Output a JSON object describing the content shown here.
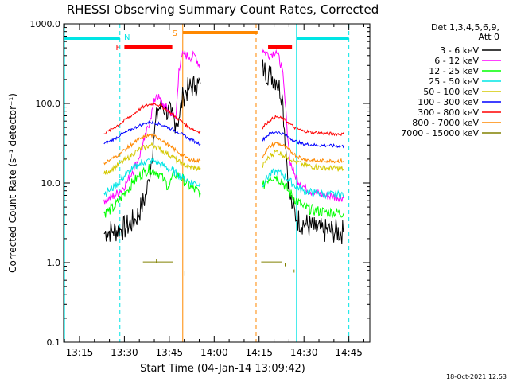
{
  "chart_data": {
    "type": "line",
    "title": "RHESSI Observing Summary Count Rates, Corrected",
    "xlabel": "Start Time (04-Jan-14 13:09:42)",
    "ylabel": "Corrected Count Rate (s⁻¹ detector⁻¹)",
    "y_scale": "log",
    "ylim": [
      0.1,
      1000
    ],
    "xlim_minutes": [
      789.7,
      892
    ],
    "x_ticks": [
      {
        "label": "13:15",
        "minutes": 795
      },
      {
        "label": "13:30",
        "minutes": 810
      },
      {
        "label": "13:45",
        "minutes": 825
      },
      {
        "label": "14:00",
        "minutes": 840
      },
      {
        "label": "14:15",
        "minutes": 855
      },
      {
        "label": "14:30",
        "minutes": 870
      },
      {
        "label": "14:45",
        "minutes": 885
      }
    ],
    "y_ticks": [
      {
        "label": "0.1",
        "value": 0.1
      },
      {
        "label": "1.0",
        "value": 1
      },
      {
        "label": "10.0",
        "value": 10
      },
      {
        "label": "100.0",
        "value": 100
      },
      {
        "label": "1000.0",
        "value": 1000
      }
    ],
    "legend_header": [
      "Det 1,3,4,5,6,9,",
      "Att 0"
    ],
    "legend_position": "right",
    "flags": [
      {
        "label": "N",
        "color": "#00e5e5",
        "start": "13:09:42",
        "end": "13:28:30"
      },
      {
        "label": "N",
        "color": "#00e5e5",
        "start": "14:27:30",
        "end": "14:45:00"
      },
      {
        "label": "F",
        "color": "#ff0000",
        "start": "13:30:00",
        "end": "13:46:00"
      },
      {
        "label": "F",
        "color": "#ff0000",
        "start": "14:18:00",
        "end": "14:26:00"
      },
      {
        "label": "S",
        "color": "#ff8800",
        "start": "13:49:30",
        "end": "14:14:30"
      }
    ],
    "vertical_lines": [
      {
        "time": "13:10:00",
        "color": "#00e5e5",
        "style": "solid"
      },
      {
        "time": "13:28:30",
        "color": "#00e5e5",
        "style": "dashed"
      },
      {
        "time": "13:49:30",
        "color": "#ff8800",
        "style": "solid"
      },
      {
        "time": "14:14:00",
        "color": "#ff8800",
        "style": "dashed"
      },
      {
        "time": "14:27:30",
        "color": "#00e5e5",
        "style": "solid"
      },
      {
        "time": "14:45:00",
        "color": "#00e5e5",
        "style": "dashed"
      }
    ],
    "series": [
      {
        "name": "3 - 6 keV",
        "color": "#000000",
        "segments": [
          {
            "x": [
              13.5,
              14.5,
              16.5,
              19,
              21,
              24,
              26,
              27.5,
              28.5,
              30,
              31.5,
              33,
              34,
              36,
              37.5,
              38.5,
              40,
              42,
              44,
              45,
              45.7
            ],
            "y": [
              2.3,
              2.5,
              2.5,
              2.6,
              2.8,
              3.5,
              5,
              7,
              11,
              35,
              85,
              95,
              85,
              70,
              58,
              65,
              130,
              155,
              170,
              180,
              175
            ]
          },
          {
            "x": [
              66.3,
              67,
              69,
              71,
              73,
              74.5,
              75.5,
              76.5,
              78,
              81,
              84,
              87,
              90,
              93.7
            ],
            "y": [
              280,
              260,
              230,
              200,
              130,
              20,
              7,
              5,
              3.5,
              3,
              2.6,
              2.5,
              2.5,
              2.4
            ]
          }
        ]
      },
      {
        "name": "6 - 12 keV",
        "color": "#ff00ff",
        "segments": [
          {
            "x": [
              13.5,
              15,
              17,
              19,
              21,
              23,
              25,
              27,
              29,
              30,
              31,
              32.5,
              34,
              36,
              37.5,
              38.5,
              40,
              42,
              44,
              45.7
            ],
            "y": [
              6.2,
              6.3,
              7,
              8,
              10,
              14,
              20,
              35,
              65,
              95,
              130,
              105,
              90,
              75,
              65,
              270,
              430,
              380,
              400,
              280
            ]
          },
          {
            "x": [
              66.3,
              67,
              69,
              71,
              73,
              74.5,
              75.5,
              77,
              79,
              81,
              84,
              87,
              90,
              93.7
            ],
            "y": [
              500,
              440,
              410,
              460,
              280,
              60,
              20,
              13,
              10,
              8.5,
              7.5,
              7,
              6.8,
              6.6
            ]
          }
        ]
      },
      {
        "name": "12 - 25 keV",
        "color": "#00ff00",
        "segments": [
          {
            "x": [
              13.5,
              15,
              17,
              19,
              21,
              23,
              25,
              27,
              29,
              30.5,
              32,
              33.5,
              35,
              37,
              39,
              41,
              43,
              45.7
            ],
            "y": [
              4.2,
              4.5,
              5,
              6.5,
              8,
              10,
              12,
              14,
              15,
              14,
              13,
              11,
              9,
              13,
              12,
              10,
              8.5,
              7.5
            ]
          },
          {
            "x": [
              66.3,
              67.5,
              69,
              71,
              73,
              75,
              77,
              80,
              84,
              88,
              93.7
            ],
            "y": [
              8.5,
              10.5,
              12,
              12,
              10.5,
              8,
              6.5,
              5,
              4.5,
              4.3,
              4.2
            ]
          }
        ]
      },
      {
        "name": "25 - 50 keV",
        "color": "#00e5e5",
        "segments": [
          {
            "x": [
              13.5,
              15,
              17,
              19,
              21,
              23,
              25,
              27,
              29,
              30.5,
              32,
              34,
              36,
              38,
              40,
              42,
              44,
              45.7
            ],
            "y": [
              7.5,
              8,
              9,
              11,
              13,
              15,
              17,
              18.5,
              19,
              19,
              17.5,
              16,
              14.5,
              13,
              11.5,
              10.5,
              10,
              9.5
            ]
          },
          {
            "x": [
              66.3,
              67.5,
              69,
              71,
              73,
              75,
              77,
              80,
              84,
              88,
              93.7
            ],
            "y": [
              9.5,
              11,
              13,
              14,
              13,
              11,
              9.5,
              8,
              7.5,
              7.2,
              7.2
            ]
          }
        ]
      },
      {
        "name": "50 - 100 keV",
        "color": "#d4c800",
        "segments": [
          {
            "x": [
              13.5,
              15,
              17,
              19,
              21,
              23,
              25,
              27,
              29,
              30.5,
              32,
              34,
              36,
              38,
              40,
              42,
              44,
              45.7
            ],
            "y": [
              13,
              14,
              15.5,
              18,
              20,
              23,
              26,
              28,
              30,
              29.5,
              27,
              24,
              22,
              19,
              17,
              16,
              15.5,
              15
            ]
          },
          {
            "x": [
              66.3,
              67.5,
              69,
              71,
              73,
              75,
              77,
              80,
              84,
              88,
              93.7
            ],
            "y": [
              16,
              19,
              22,
              25,
              23,
              21,
              19,
              17,
              16,
              15.5,
              15
            ]
          }
        ]
      },
      {
        "name": "100 - 300 keV",
        "color": "#0000ff",
        "segments": [
          {
            "x": [
              13.5,
              15,
              17,
              19,
              21,
              23,
              25,
              27,
              29,
              30.5,
              32,
              34,
              36,
              38,
              40,
              42,
              44,
              45.7
            ],
            "y": [
              31,
              33,
              36,
              40,
              44,
              48,
              52,
              56,
              58,
              57,
              55,
              52,
              48,
              44,
              40,
              36,
              33,
              31
            ]
          },
          {
            "x": [
              66.3,
              67.5,
              69,
              71,
              73,
              75,
              77,
              80,
              84,
              88,
              93.7
            ],
            "y": [
              34,
              38,
              42,
              44,
              42,
              38,
              34,
              31,
              30,
              29.5,
              29
            ]
          }
        ]
      },
      {
        "name": "300 - 800 keV",
        "color": "#ff0000",
        "segments": [
          {
            "x": [
              13.5,
              15,
              17,
              19,
              21,
              23,
              25,
              27,
              29,
              30.5,
              32,
              34,
              36,
              38,
              40,
              42,
              44,
              45.7
            ],
            "y": [
              42,
              45,
              50,
              56,
              64,
              72,
              82,
              92,
              98,
              100,
              95,
              85,
              75,
              65,
              57,
              50,
              46,
              44
            ]
          },
          {
            "x": [
              66.3,
              67.5,
              69,
              71,
              73,
              75,
              77,
              80,
              84,
              88,
              93.7
            ],
            "y": [
              48,
              55,
              62,
              68,
              65,
              58,
              50,
              45,
              43,
              42,
              41
            ]
          }
        ]
      },
      {
        "name": "800 - 7000 keV",
        "color": "#ff8800",
        "segments": [
          {
            "x": [
              13.5,
              15,
              17,
              19,
              21,
              23,
              25,
              27,
              29,
              30.5,
              32,
              34,
              36,
              38,
              40,
              42,
              44,
              45.7
            ],
            "y": [
              18,
              19,
              21,
              24,
              27,
              31,
              35,
              38,
              40,
              39,
              36,
              32,
              28,
              25,
              22,
              20,
              19,
              19
            ]
          },
          {
            "x": [
              66.3,
              67.5,
              69,
              71,
              73,
              75,
              77,
              80,
              84,
              88,
              93.7
            ],
            "y": [
              21,
              25,
              29,
              32,
              30,
              27,
              23,
              20,
              19,
              19,
              19
            ]
          }
        ]
      },
      {
        "name": "7000 - 15000 keV",
        "color": "#808000",
        "segments": [
          {
            "x": [
              26.5,
              36.5
            ],
            "y": [
              1.02,
              1.02
            ]
          },
          {
            "x": [
              66,
              73
            ],
            "y": [
              1.02,
              1.02
            ]
          },
          {
            "x": [
              31,
              31
            ],
            "y": [
              1.0,
              1.1
            ]
          },
          {
            "x": [
              74,
              74
            ],
            "y": [
              0.9,
              1.0
            ]
          },
          {
            "x": [
              40.5,
              40.5
            ],
            "y": [
              0.68,
              0.78
            ]
          },
          {
            "x": [
              77,
              77
            ],
            "y": [
              0.75,
              0.82
            ]
          }
        ]
      }
    ]
  },
  "footer_timestamp": "18-Oct-2021 12:53"
}
